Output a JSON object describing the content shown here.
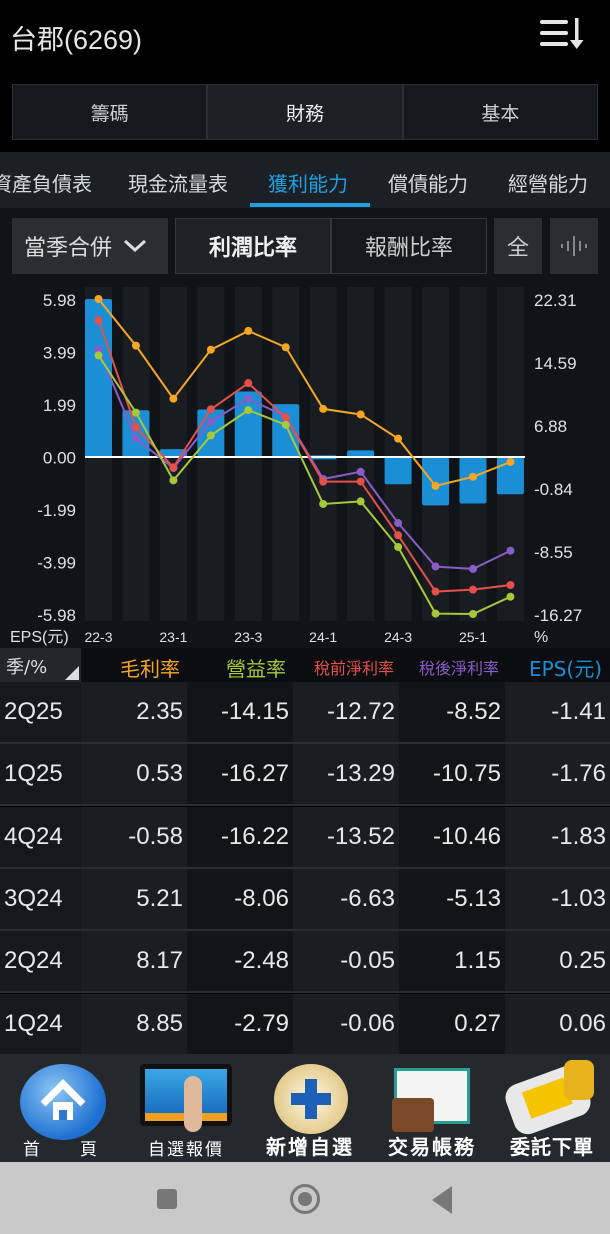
{
  "header": {
    "title": "台郡(6269)",
    "menu_icon": "sort-list-icon"
  },
  "segments": [
    "籌碼",
    "財務",
    "基本"
  ],
  "active_segment": 1,
  "tabs": [
    "資產負債表",
    "現金流量表",
    "獲利能力",
    "償債能力",
    "經營能力"
  ],
  "active_tab": 2,
  "controls": {
    "period": "當季合併",
    "btn1": "利潤比率",
    "btn2": "報酬比率",
    "all": "全"
  },
  "colors": {
    "gross": "#f5a623",
    "op": "#a6c93a",
    "pretax": "#e5504a",
    "net": "#8a5cc7",
    "eps": "#1a8fd6"
  },
  "chart_data": {
    "type": "bar+line",
    "x": [
      "22-3",
      "22-4",
      "23-1",
      "23-2",
      "23-3",
      "23-4",
      "24-1",
      "24-2",
      "24-3",
      "24-4",
      "25-1",
      "25-2"
    ],
    "x_tick_labels": [
      "22-3",
      "23-1",
      "23-3",
      "24-1",
      "24-3",
      "25-1"
    ],
    "left_axis": {
      "label": "EPS(元)",
      "ticks": [
        "5.98",
        "3.99",
        "1.99",
        "0.00",
        "-1.99",
        "-3.99",
        "-5.98"
      ],
      "range": [
        -5.98,
        5.98
      ]
    },
    "right_axis": {
      "label": "%",
      "ticks": [
        "22.31",
        "14.59",
        "6.88",
        "-0.84",
        "-8.55",
        "-16.27"
      ],
      "range": [
        -16.27,
        22.31
      ]
    },
    "series": [
      {
        "name": "毛利率",
        "key": "gross",
        "axis": "right",
        "type": "line",
        "values": [
          22.31,
          16.6,
          10.1,
          16.1,
          18.4,
          16.4,
          8.85,
          8.17,
          5.21,
          -0.58,
          0.53,
          2.35
        ]
      },
      {
        "name": "營益率",
        "key": "op",
        "axis": "right",
        "type": "line",
        "values": [
          15.4,
          8.4,
          0.1,
          5.6,
          8.7,
          6.9,
          -2.79,
          -2.48,
          -8.06,
          -16.22,
          -16.27,
          -14.15
        ]
      },
      {
        "name": "稅前淨利率",
        "key": "pretax",
        "axis": "right",
        "type": "line",
        "values": [
          19.7,
          6.6,
          1.7,
          8.8,
          12.0,
          7.8,
          -0.06,
          -0.05,
          -6.63,
          -13.52,
          -13.29,
          -12.72
        ]
      },
      {
        "name": "稅後淨利率",
        "key": "net",
        "axis": "right",
        "type": "line",
        "values": [
          16.1,
          5.2,
          1.6,
          7.3,
          10.1,
          7.9,
          0.27,
          1.15,
          -5.13,
          -10.46,
          -10.75,
          -8.52
        ]
      },
      {
        "name": "EPS(元)",
        "key": "eps",
        "axis": "left",
        "type": "bar",
        "values": [
          5.98,
          1.77,
          0.3,
          1.8,
          2.48,
          2.0,
          0.06,
          0.25,
          -1.03,
          -1.83,
          -1.76,
          -1.41
        ]
      }
    ]
  },
  "table": {
    "corner": "季/%",
    "headers": [
      "毛利率",
      "營益率",
      "稅前淨利率",
      "稅後淨利率",
      "EPS(元)"
    ],
    "rows": [
      [
        "2Q25",
        "2.35",
        "-14.15",
        "-12.72",
        "-8.52",
        "-1.41"
      ],
      [
        "1Q25",
        "0.53",
        "-16.27",
        "-13.29",
        "-10.75",
        "-1.76"
      ],
      [
        "4Q24",
        "-0.58",
        "-16.22",
        "-13.52",
        "-10.46",
        "-1.83"
      ],
      [
        "3Q24",
        "5.21",
        "-8.06",
        "-6.63",
        "-5.13",
        "-1.03"
      ],
      [
        "2Q24",
        "8.17",
        "-2.48",
        "-0.05",
        "1.15",
        "0.25"
      ],
      [
        "1Q24",
        "8.85",
        "-2.79",
        "-0.06",
        "0.27",
        "0.06"
      ]
    ]
  },
  "bottom_nav": [
    "首　　頁",
    "自選報價",
    "新增自選",
    "交易帳務",
    "委託下單"
  ]
}
